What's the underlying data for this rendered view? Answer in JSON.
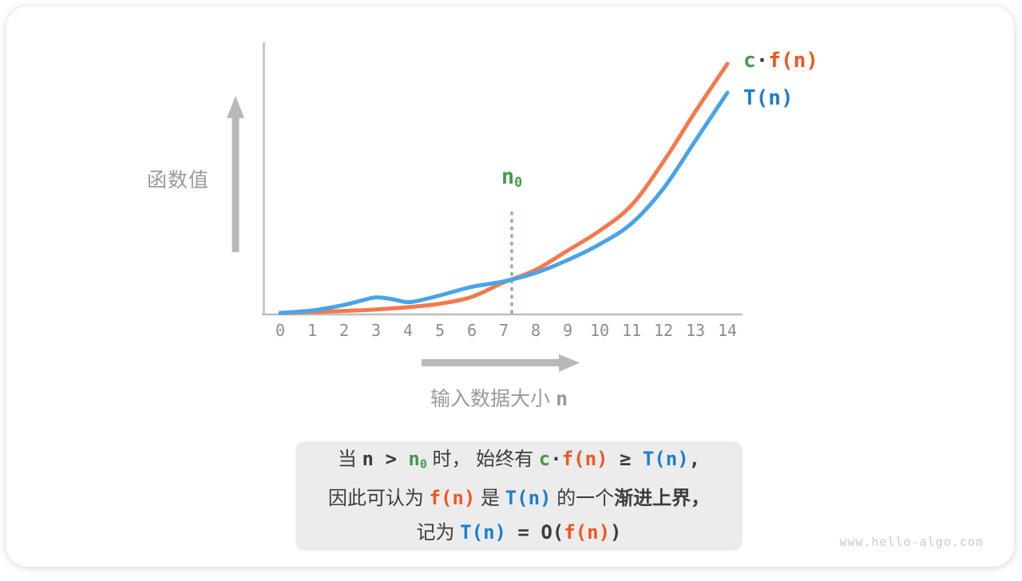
{
  "page": {
    "watermark": "www.hello-algo.com"
  },
  "colors": {
    "curve_cfn": "#f27a4d",
    "curve_tn": "#4aa3e8",
    "text_orange": "#f1561d",
    "text_blue": "#1a7fd0",
    "text_green": "#479a4d",
    "dotted_green": "#7cb77e",
    "axis_gray": "#c0c0c0",
    "arrow_gray": "#b8b8b8",
    "label_gray": "#9a9a9a",
    "dark_text": "#3c3c3c",
    "box_bg": "#ececec"
  },
  "chart_data": {
    "type": "line",
    "title": "",
    "xlabel": "输入数据大小 n",
    "ylabel": "函数值",
    "x_ticks": [
      "0",
      "1",
      "2",
      "3",
      "4",
      "5",
      "6",
      "7",
      "8",
      "9",
      "10",
      "11",
      "12",
      "13",
      "14"
    ],
    "xlim": [
      0,
      14
    ],
    "ylim": [
      0,
      108
    ],
    "grid": false,
    "legend_position": "top-right",
    "series": [
      {
        "name": "c·f(n)",
        "color": "#f27a4d",
        "x": [
          0,
          1,
          2,
          3,
          4,
          5,
          6,
          7,
          8,
          9,
          10,
          11,
          12,
          13,
          14
        ],
        "y": [
          0.6,
          1.0,
          1.4,
          2.0,
          2.9,
          4.3,
          7.0,
          12.8,
          17.8,
          25.5,
          33.4,
          43.6,
          61,
          81,
          100
        ]
      },
      {
        "name": "T(n)",
        "color": "#4aa3e8",
        "x": [
          0,
          1,
          2,
          2.5,
          3,
          3.5,
          4,
          4.5,
          5,
          6,
          7,
          8,
          9,
          10,
          11,
          12,
          13,
          14
        ],
        "y": [
          0.6,
          1.6,
          3.8,
          5.4,
          6.8,
          6.1,
          4.9,
          6.0,
          7.6,
          11.0,
          13.2,
          16.6,
          21.7,
          28.0,
          36.3,
          50.3,
          69.4,
          88.5
        ]
      }
    ],
    "annotation": {
      "label": "n₀",
      "x": 7.25,
      "line_top_value": 41
    }
  },
  "ui": {
    "ylabel_segments": [
      {
        "t": "函数值",
        "s": "gray"
      }
    ],
    "xlabel_segments": [
      {
        "t": "输入数据大小 ",
        "s": "gray"
      },
      {
        "t": "n",
        "s": "graymono"
      }
    ],
    "n0_segments": [
      {
        "t": "n",
        "s": "green"
      },
      {
        "t": "0",
        "s": "green",
        "sub": true
      }
    ],
    "legend_cfn_segments": [
      {
        "t": "c",
        "s": "green"
      },
      {
        "t": "·",
        "s": "mono"
      },
      {
        "t": "f(n)",
        "s": "orange"
      }
    ],
    "legend_tn_segments": [
      {
        "t": "T(n)",
        "s": "blue"
      }
    ],
    "caption_lines": [
      [
        {
          "t": "当 ",
          "s": "cn"
        },
        {
          "t": "n",
          "s": "mono"
        },
        {
          "t": " > ",
          "s": "mono"
        },
        {
          "t": "n",
          "s": "green"
        },
        {
          "t": "0",
          "s": "green",
          "sub": true
        },
        {
          "t": " 时， ",
          "s": "cn"
        },
        {
          "t": "始终有 ",
          "s": "cn"
        },
        {
          "t": "c",
          "s": "green"
        },
        {
          "t": "·",
          "s": "mono"
        },
        {
          "t": "f(n)",
          "s": "orange"
        },
        {
          "t": " ≥ ",
          "s": "mono"
        },
        {
          "t": "T(n)",
          "s": "blue"
        },
        {
          "t": ",",
          "s": "mono"
        }
      ],
      [
        {
          "t": "因此可认为 ",
          "s": "cn"
        },
        {
          "t": "f(n)",
          "s": "orange"
        },
        {
          "t": " 是 ",
          "s": "cn"
        },
        {
          "t": "T(n)",
          "s": "blue"
        },
        {
          "t": " 的一个",
          "s": "cn"
        },
        {
          "t": "渐进上界",
          "s": "cnb"
        },
        {
          "t": "，",
          "s": "cnb"
        }
      ],
      [
        {
          "t": "记为 ",
          "s": "cn"
        },
        {
          "t": "T(n)",
          "s": "blue"
        },
        {
          "t": " = ",
          "s": "mono"
        },
        {
          "t": "O(",
          "s": "mono"
        },
        {
          "t": "f(n)",
          "s": "orange"
        },
        {
          "t": ")",
          "s": "mono"
        }
      ]
    ]
  }
}
